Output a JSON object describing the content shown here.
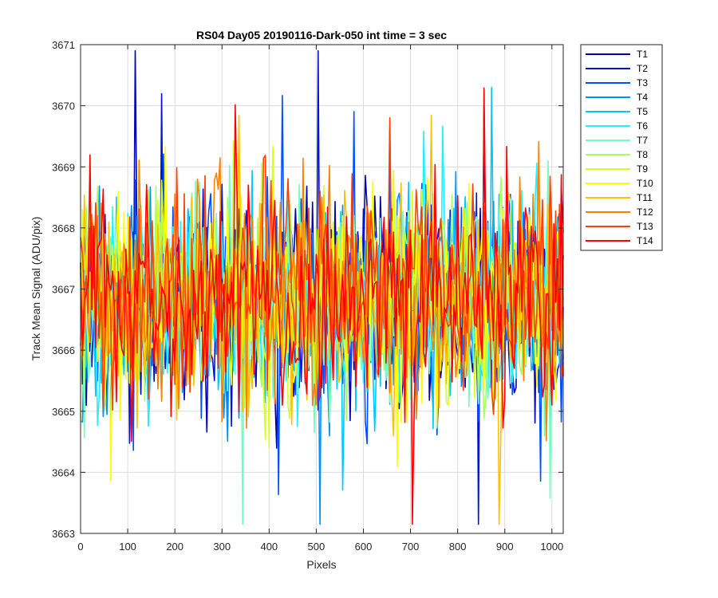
{
  "chart_data": {
    "type": "line",
    "title": "RS04 Day05 20190116-Dark-050 int time = 3 sec",
    "xlabel": "Pixels",
    "ylabel": "Track Mean Signal (ADU/pix)",
    "xlim": [
      0,
      1024
    ],
    "ylim": [
      3663,
      3671
    ],
    "xticks": [
      0,
      100,
      200,
      300,
      400,
      500,
      600,
      700,
      800,
      900,
      1000
    ],
    "yticks": [
      3663,
      3664,
      3665,
      3666,
      3667,
      3668,
      3669,
      3670,
      3671
    ],
    "grid": true,
    "legend_position": "outside-top-right",
    "noise": {
      "mean": 3666.8,
      "spread": 0.85,
      "min": 3663.15,
      "max": 3670.9,
      "pixel_step": 4
    },
    "series": [
      {
        "name": "T1",
        "color": "#0000b0"
      },
      {
        "name": "T2",
        "color": "#0014d8"
      },
      {
        "name": "T3",
        "color": "#0050ff"
      },
      {
        "name": "T4",
        "color": "#0090ff"
      },
      {
        "name": "T5",
        "color": "#00c8ff"
      },
      {
        "name": "T6",
        "color": "#20f0ff"
      },
      {
        "name": "T7",
        "color": "#70ffc0"
      },
      {
        "name": "T8",
        "color": "#a8ff60"
      },
      {
        "name": "T9",
        "color": "#d8ff20"
      },
      {
        "name": "T10",
        "color": "#ffff00"
      },
      {
        "name": "T11",
        "color": "#ffc000"
      },
      {
        "name": "T12",
        "color": "#ff8000"
      },
      {
        "name": "T13",
        "color": "#ff4000"
      },
      {
        "name": "T14",
        "color": "#ff0000"
      }
    ]
  }
}
